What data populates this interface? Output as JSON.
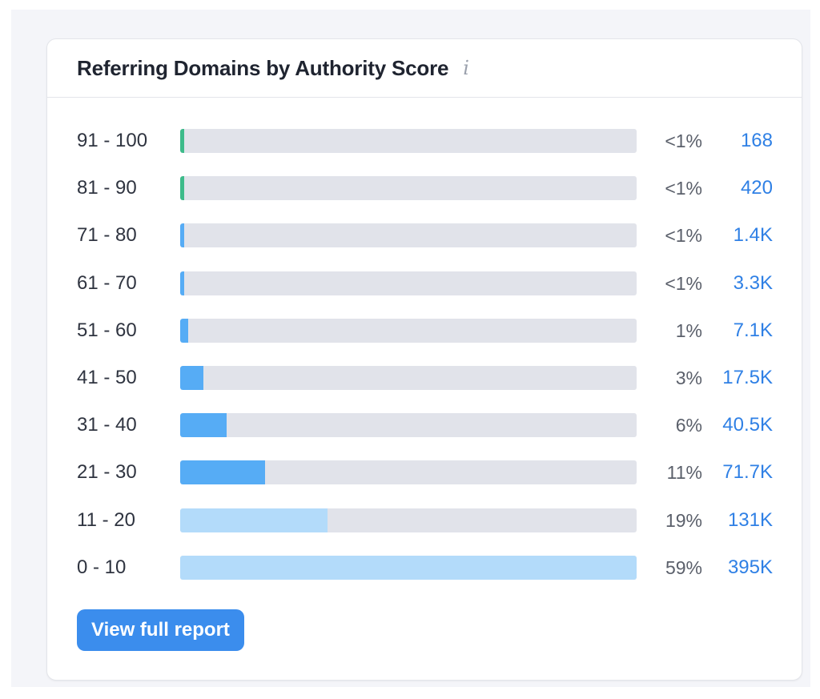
{
  "widget": {
    "title": "Referring Domains by Authority Score",
    "info_icon": "info-icon",
    "button_label": "View full report"
  },
  "colors": {
    "bar_green": "#3dbb8a",
    "bar_blue": "#56acf5",
    "bar_light_blue": "#b3dbfa",
    "track": "#e1e3ea",
    "count_link": "#2f80e5",
    "button": "#3b8ded"
  },
  "chart_data": {
    "type": "bar",
    "orientation": "horizontal",
    "title": "Referring Domains by Authority Score",
    "xlim": [
      0,
      100
    ],
    "rows": [
      {
        "label": "91 - 100",
        "fraction": 0.005,
        "percent_label": "<1%",
        "count_label": "168",
        "color": "green"
      },
      {
        "label": "81 - 90",
        "fraction": 0.005,
        "percent_label": "<1%",
        "count_label": "420",
        "color": "green"
      },
      {
        "label": "71 - 80",
        "fraction": 0.005,
        "percent_label": "<1%",
        "count_label": "1.4K",
        "color": "blue"
      },
      {
        "label": "61 - 70",
        "fraction": 0.005,
        "percent_label": "<1%",
        "count_label": "3.3K",
        "color": "blue"
      },
      {
        "label": "51 - 60",
        "fraction": 0.01,
        "percent_label": "1%",
        "count_label": "7.1K",
        "color": "blue"
      },
      {
        "label": "41 - 50",
        "fraction": 0.03,
        "percent_label": "3%",
        "count_label": "17.5K",
        "color": "blue"
      },
      {
        "label": "31 - 40",
        "fraction": 0.06,
        "percent_label": "6%",
        "count_label": "40.5K",
        "color": "blue"
      },
      {
        "label": "21 - 30",
        "fraction": 0.11,
        "percent_label": "11%",
        "count_label": "71.7K",
        "color": "blue"
      },
      {
        "label": "11 - 20",
        "fraction": 0.19,
        "percent_label": "19%",
        "count_label": "131K",
        "color": "light_blue"
      },
      {
        "label": "0 - 10",
        "fraction": 0.59,
        "percent_label": "59%",
        "count_label": "395K",
        "color": "light_blue"
      }
    ]
  }
}
